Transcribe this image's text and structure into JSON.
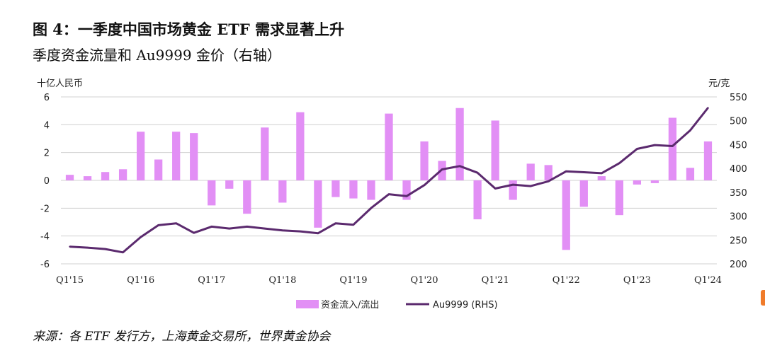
{
  "figure": {
    "title": "图 4：一季度中国市场黄金 ETF 需求显著上升",
    "subtitle": "季度资金流量和 Au9999 金价（右轴）",
    "source": "来源：各 ETF 发行方，上海黄金交易所，世界黄金协会"
  },
  "chart_data": {
    "type": "bar",
    "title": "",
    "y_left_label": "十亿人民币",
    "y_right_label": "元/克",
    "ylim_left": [
      -6,
      6
    ],
    "yticks_left": [
      6,
      4,
      2,
      0,
      -2,
      -4,
      -6
    ],
    "ylim_right": [
      200,
      550
    ],
    "yticks_right": [
      550,
      500,
      450,
      400,
      350,
      300,
      250,
      200
    ],
    "grid": "horizontal",
    "legend_position": "bottom-center",
    "x_tick_labels": [
      "Q1'15",
      "Q1'16",
      "Q1'17",
      "Q1'18",
      "Q1'19",
      "Q1'20",
      "Q1'21",
      "Q1'22",
      "Q1'23",
      "Q1'24"
    ],
    "categories": [
      "Q1'15",
      "Q2'15",
      "Q3'15",
      "Q4'15",
      "Q1'16",
      "Q2'16",
      "Q3'16",
      "Q4'16",
      "Q1'17",
      "Q2'17",
      "Q3'17",
      "Q4'17",
      "Q1'18",
      "Q2'18",
      "Q3'18",
      "Q4'18",
      "Q1'19",
      "Q2'19",
      "Q3'19",
      "Q4'19",
      "Q1'20",
      "Q2'20",
      "Q3'20",
      "Q4'20",
      "Q1'21",
      "Q2'21",
      "Q3'21",
      "Q4'21",
      "Q1'22",
      "Q2'22",
      "Q3'22",
      "Q4'22",
      "Q1'23",
      "Q2'23",
      "Q3'23",
      "Q4'23",
      "Q1'24"
    ],
    "series": [
      {
        "name": "资金流入/流出",
        "type": "bar",
        "axis": "left",
        "color": "#e28ff5",
        "values": [
          0.4,
          0.3,
          0.6,
          0.8,
          3.5,
          1.5,
          3.5,
          3.4,
          -1.8,
          -0.6,
          -2.4,
          3.8,
          -1.6,
          4.9,
          -3.4,
          -1.2,
          -1.3,
          -1.4,
          4.8,
          -1.4,
          2.8,
          1.4,
          5.2,
          -2.8,
          4.3,
          -1.4,
          1.2,
          1.1,
          -5.0,
          -1.9,
          0.3,
          -2.5,
          -0.3,
          -0.2,
          4.5,
          0.9,
          2.8
        ]
      },
      {
        "name": "Au9999 (RHS)",
        "type": "line",
        "axis": "right",
        "color": "#5b2a6e",
        "values": [
          236,
          234,
          231,
          224,
          256,
          281,
          285,
          265,
          278,
          274,
          278,
          274,
          270,
          268,
          264,
          285,
          282,
          317,
          346,
          342,
          365,
          398,
          405,
          391,
          358,
          366,
          363,
          373,
          394,
          392,
          390,
          411,
          441,
          449,
          447,
          480,
          527
        ]
      }
    ]
  }
}
